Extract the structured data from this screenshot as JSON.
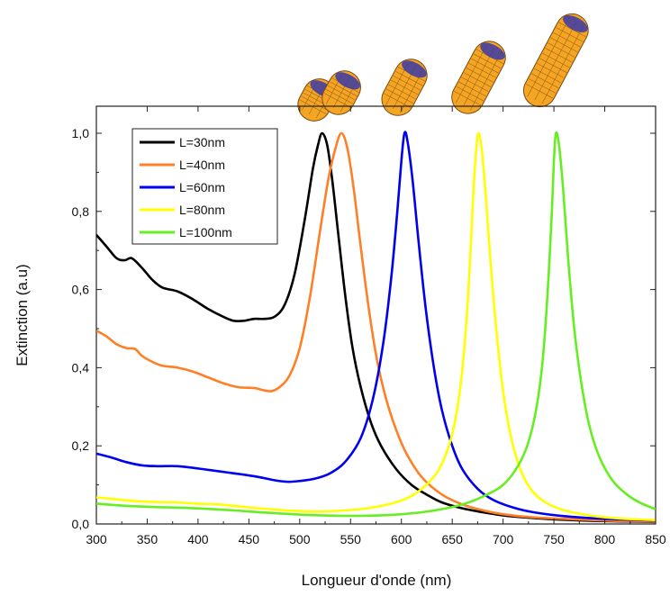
{
  "chart_data": {
    "type": "line",
    "xlabel": "Longueur d'onde (nm)",
    "ylabel": "Extinction (a.u)",
    "xlim": [
      300,
      850
    ],
    "ylim": [
      0,
      1.05
    ],
    "xticks": [
      "300",
      "350",
      "400",
      "450",
      "500",
      "550",
      "600",
      "650",
      "700",
      "750",
      "800",
      "850"
    ],
    "yticks": [
      "0,0",
      "0,2",
      "0,4",
      "0,6",
      "0,8",
      "1,0"
    ],
    "grid": false,
    "legend_position": "top-left",
    "series": [
      {
        "name": "L=30nm",
        "color": "#000000",
        "points": [
          [
            300,
            0.74
          ],
          [
            310,
            0.71
          ],
          [
            320,
            0.68
          ],
          [
            328,
            0.675
          ],
          [
            335,
            0.68
          ],
          [
            345,
            0.655
          ],
          [
            355,
            0.625
          ],
          [
            365,
            0.605
          ],
          [
            380,
            0.595
          ],
          [
            395,
            0.575
          ],
          [
            410,
            0.55
          ],
          [
            425,
            0.53
          ],
          [
            435,
            0.52
          ],
          [
            445,
            0.52
          ],
          [
            455,
            0.525
          ],
          [
            465,
            0.525
          ],
          [
            475,
            0.53
          ],
          [
            485,
            0.56
          ],
          [
            495,
            0.64
          ],
          [
            505,
            0.78
          ],
          [
            513,
            0.91
          ],
          [
            518,
            0.97
          ],
          [
            522,
            1.0
          ],
          [
            527,
            0.97
          ],
          [
            532,
            0.88
          ],
          [
            538,
            0.74
          ],
          [
            545,
            0.58
          ],
          [
            552,
            0.45
          ],
          [
            560,
            0.35
          ],
          [
            570,
            0.26
          ],
          [
            580,
            0.2
          ],
          [
            595,
            0.14
          ],
          [
            610,
            0.1
          ],
          [
            625,
            0.075
          ],
          [
            640,
            0.055
          ],
          [
            660,
            0.04
          ],
          [
            680,
            0.03
          ],
          [
            700,
            0.022
          ],
          [
            720,
            0.017
          ],
          [
            750,
            0.012
          ],
          [
            790,
            0.008
          ],
          [
            850,
            0.005
          ]
        ]
      },
      {
        "name": "L=40nm",
        "color": "#ff7f27",
        "points": [
          [
            300,
            0.495
          ],
          [
            310,
            0.48
          ],
          [
            320,
            0.46
          ],
          [
            330,
            0.45
          ],
          [
            338,
            0.448
          ],
          [
            345,
            0.43
          ],
          [
            355,
            0.415
          ],
          [
            365,
            0.405
          ],
          [
            380,
            0.4
          ],
          [
            395,
            0.39
          ],
          [
            410,
            0.375
          ],
          [
            425,
            0.36
          ],
          [
            440,
            0.35
          ],
          [
            455,
            0.348
          ],
          [
            465,
            0.342
          ],
          [
            472,
            0.34
          ],
          [
            480,
            0.35
          ],
          [
            490,
            0.38
          ],
          [
            500,
            0.45
          ],
          [
            510,
            0.58
          ],
          [
            520,
            0.75
          ],
          [
            528,
            0.88
          ],
          [
            535,
            0.96
          ],
          [
            541,
            1.0
          ],
          [
            547,
            0.96
          ],
          [
            553,
            0.86
          ],
          [
            560,
            0.71
          ],
          [
            568,
            0.55
          ],
          [
            576,
            0.42
          ],
          [
            585,
            0.32
          ],
          [
            595,
            0.24
          ],
          [
            605,
            0.18
          ],
          [
            620,
            0.12
          ],
          [
            640,
            0.075
          ],
          [
            660,
            0.05
          ],
          [
            680,
            0.035
          ],
          [
            700,
            0.025
          ],
          [
            730,
            0.017
          ],
          [
            770,
            0.012
          ],
          [
            810,
            0.008
          ],
          [
            850,
            0.006
          ]
        ]
      },
      {
        "name": "L=60nm",
        "color": "#0000ee",
        "points": [
          [
            300,
            0.18
          ],
          [
            315,
            0.17
          ],
          [
            330,
            0.158
          ],
          [
            345,
            0.15
          ],
          [
            360,
            0.148
          ],
          [
            380,
            0.148
          ],
          [
            400,
            0.142
          ],
          [
            420,
            0.135
          ],
          [
            440,
            0.128
          ],
          [
            460,
            0.12
          ],
          [
            475,
            0.112
          ],
          [
            488,
            0.108
          ],
          [
            500,
            0.11
          ],
          [
            515,
            0.116
          ],
          [
            530,
            0.13
          ],
          [
            545,
            0.16
          ],
          [
            560,
            0.22
          ],
          [
            572,
            0.32
          ],
          [
            582,
            0.46
          ],
          [
            590,
            0.63
          ],
          [
            596,
            0.8
          ],
          [
            600,
            0.93
          ],
          [
            603,
            1.0
          ],
          [
            606,
            0.98
          ],
          [
            611,
            0.88
          ],
          [
            617,
            0.72
          ],
          [
            624,
            0.55
          ],
          [
            632,
            0.4
          ],
          [
            640,
            0.29
          ],
          [
            650,
            0.2
          ],
          [
            660,
            0.14
          ],
          [
            675,
            0.09
          ],
          [
            690,
            0.062
          ],
          [
            710,
            0.042
          ],
          [
            730,
            0.03
          ],
          [
            760,
            0.02
          ],
          [
            800,
            0.013
          ],
          [
            850,
            0.009
          ]
        ]
      },
      {
        "name": "L=80nm",
        "color": "#ffff00",
        "points": [
          [
            300,
            0.068
          ],
          [
            320,
            0.063
          ],
          [
            340,
            0.058
          ],
          [
            360,
            0.056
          ],
          [
            380,
            0.055
          ],
          [
            400,
            0.052
          ],
          [
            420,
            0.05
          ],
          [
            440,
            0.045
          ],
          [
            460,
            0.04
          ],
          [
            480,
            0.036
          ],
          [
            500,
            0.033
          ],
          [
            520,
            0.032
          ],
          [
            540,
            0.034
          ],
          [
            560,
            0.038
          ],
          [
            580,
            0.046
          ],
          [
            600,
            0.06
          ],
          [
            615,
            0.08
          ],
          [
            630,
            0.115
          ],
          [
            640,
            0.155
          ],
          [
            650,
            0.23
          ],
          [
            658,
            0.35
          ],
          [
            664,
            0.52
          ],
          [
            668,
            0.7
          ],
          [
            671,
            0.86
          ],
          [
            674,
            0.97
          ],
          [
            676,
            1.0
          ],
          [
            679,
            0.96
          ],
          [
            683,
            0.84
          ],
          [
            688,
            0.66
          ],
          [
            694,
            0.48
          ],
          [
            700,
            0.34
          ],
          [
            708,
            0.22
          ],
          [
            717,
            0.14
          ],
          [
            727,
            0.09
          ],
          [
            740,
            0.058
          ],
          [
            760,
            0.035
          ],
          [
            790,
            0.02
          ],
          [
            820,
            0.013
          ],
          [
            850,
            0.01
          ]
        ]
      },
      {
        "name": "L=100nm",
        "color": "#66ee22",
        "points": [
          [
            300,
            0.052
          ],
          [
            320,
            0.048
          ],
          [
            340,
            0.045
          ],
          [
            360,
            0.043
          ],
          [
            380,
            0.042
          ],
          [
            400,
            0.04
          ],
          [
            420,
            0.037
          ],
          [
            440,
            0.034
          ],
          [
            460,
            0.03
          ],
          [
            480,
            0.027
          ],
          [
            500,
            0.024
          ],
          [
            520,
            0.022
          ],
          [
            540,
            0.021
          ],
          [
            560,
            0.021
          ],
          [
            580,
            0.022
          ],
          [
            600,
            0.025
          ],
          [
            620,
            0.03
          ],
          [
            640,
            0.038
          ],
          [
            660,
            0.05
          ],
          [
            680,
            0.07
          ],
          [
            700,
            0.1
          ],
          [
            715,
            0.15
          ],
          [
            725,
            0.21
          ],
          [
            733,
            0.3
          ],
          [
            739,
            0.42
          ],
          [
            744,
            0.6
          ],
          [
            748,
            0.8
          ],
          [
            750,
            0.93
          ],
          [
            752,
            1.0
          ],
          [
            755,
            0.97
          ],
          [
            759,
            0.86
          ],
          [
            764,
            0.68
          ],
          [
            770,
            0.5
          ],
          [
            777,
            0.36
          ],
          [
            785,
            0.25
          ],
          [
            795,
            0.17
          ],
          [
            808,
            0.11
          ],
          [
            822,
            0.075
          ],
          [
            835,
            0.054
          ],
          [
            850,
            0.038
          ]
        ]
      }
    ]
  },
  "nanorods": [
    {
      "name": "rod-30nm",
      "length": 30,
      "body": "#f5a524",
      "cap": "#3b3aa8"
    },
    {
      "name": "rod-40nm",
      "length": 40,
      "body": "#f5a524",
      "cap": "#3b3aa8"
    },
    {
      "name": "rod-60nm",
      "length": 60,
      "body": "#f5a524",
      "cap": "#3b3aa8"
    },
    {
      "name": "rod-80nm",
      "length": 80,
      "body": "#f5a524",
      "cap": "#3b3aa8"
    },
    {
      "name": "rod-100nm",
      "length": 100,
      "body": "#f5a524",
      "cap": "#3b3aa8"
    }
  ]
}
